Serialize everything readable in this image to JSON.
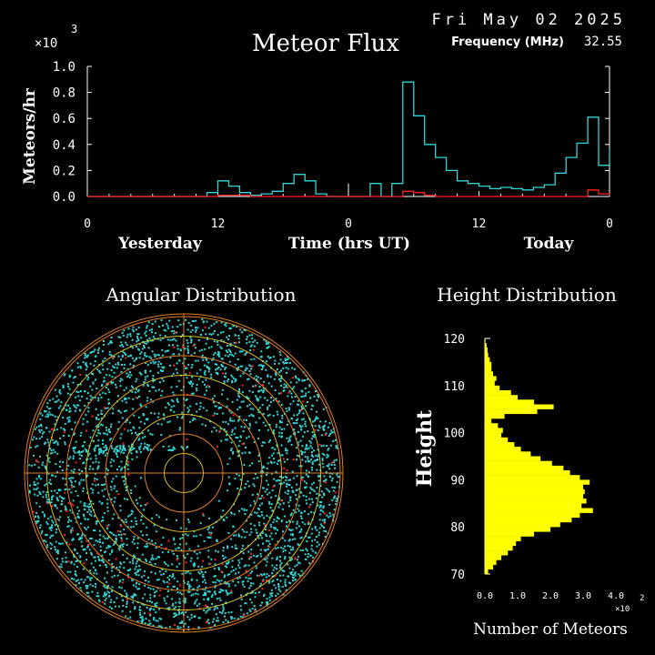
{
  "header": {
    "date": "Fri May 02 2025",
    "frequency_label": "Frequency (MHz)",
    "frequency_value": "32.55"
  },
  "colors": {
    "background": "#000000",
    "flux_line": "#33d6d6",
    "red_line": "#ff2020",
    "axis": "#ffffff",
    "polar_grid": "#e08020",
    "polar_inner_grid": "#d8c020",
    "meteor_points": "#33d6d6",
    "meteor_points_red": "#ff2020",
    "height_bars": "#ffff00"
  },
  "chart_data": [
    {
      "type": "line",
      "title": "Meteor Flux",
      "ylabel": "Meteors/hr",
      "y_exponent": "×10",
      "y_exponent_power": "3",
      "xlabel": "Time (hrs UT)",
      "day_labels": [
        "Yesterday",
        "Today"
      ],
      "x_tick_labels": [
        "0",
        "12",
        "0",
        "12",
        "0"
      ],
      "y_tick_labels": [
        "0.0",
        "0.2",
        "0.4",
        "0.6",
        "0.8",
        "1.0"
      ],
      "ylim": [
        0,
        1.0
      ],
      "xlim": [
        0,
        48
      ],
      "steps_per_hour": 1,
      "series": [
        {
          "color": "cyan",
          "values": [
            0,
            0,
            0,
            0,
            0,
            0,
            0,
            0,
            0,
            0,
            0,
            0.03,
            0.12,
            0.08,
            0.03,
            0.01,
            0.02,
            0.04,
            0.1,
            0.17,
            0.12,
            0.02,
            0,
            0,
            0,
            0,
            0.1,
            0.0,
            0.1,
            0.88,
            0.62,
            0.4,
            0.3,
            0.2,
            0.12,
            0.1,
            0.08,
            0.06,
            0.07,
            0.06,
            0.05,
            0.07,
            0.09,
            0.18,
            0.3,
            0.41,
            0.61,
            0.24,
            0.37
          ]
        },
        {
          "color": "red",
          "values": [
            0,
            0,
            0,
            0,
            0,
            0,
            0,
            0,
            0,
            0,
            0,
            0,
            0.01,
            0.01,
            0.01,
            0,
            0,
            0,
            0,
            0,
            0,
            0,
            0,
            0,
            0,
            0,
            0,
            0,
            0,
            0.04,
            0.03,
            0.01,
            0,
            0,
            0,
            0,
            0,
            0,
            0,
            0,
            0,
            0,
            0,
            0,
            0,
            0,
            0.05,
            0.02,
            0.01
          ]
        }
      ],
      "vertical_marker_hour": 24
    },
    {
      "type": "scatter",
      "title": "Angular Distribution",
      "rings": 8,
      "point_count_cyan": 3200,
      "point_count_red": 150
    },
    {
      "type": "bar",
      "title": "Height Distribution",
      "ylabel": "Height",
      "xlabel": "Number of Meteors",
      "x_exponent": "×10",
      "x_exponent_power": "2",
      "x_tick_labels": [
        "0.0",
        "1.0",
        "2.0",
        "3.0",
        "4.0"
      ],
      "y_tick_labels": [
        "70",
        "80",
        "90",
        "100",
        "110",
        "120"
      ],
      "xlim": [
        0,
        4.0
      ],
      "ylim": [
        70,
        120
      ],
      "heights": [
        70,
        71,
        72,
        73,
        74,
        75,
        76,
        77,
        78,
        79,
        80,
        81,
        82,
        83,
        84,
        85,
        86,
        87,
        88,
        89,
        90,
        91,
        92,
        93,
        94,
        95,
        96,
        97,
        98,
        99,
        100,
        101,
        102,
        103,
        104,
        105,
        106,
        107,
        108,
        109,
        110,
        111,
        112,
        113,
        114,
        115,
        116,
        117,
        118,
        119
      ],
      "values": [
        0.1,
        0.25,
        0.35,
        0.5,
        0.7,
        0.85,
        0.95,
        1.1,
        1.5,
        2.0,
        2.3,
        2.65,
        2.9,
        3.3,
        2.95,
        3.1,
        3.0,
        3.05,
        3.0,
        3.2,
        2.9,
        2.6,
        2.4,
        2.05,
        1.7,
        1.4,
        1.1,
        0.9,
        0.7,
        0.5,
        0.55,
        0.4,
        0.2,
        0.6,
        1.6,
        2.1,
        1.5,
        1.0,
        0.8,
        0.45,
        0.3,
        0.35,
        0.25,
        0.2,
        0.2,
        0.15,
        0.1,
        0.08,
        0.05,
        0.02
      ]
    }
  ]
}
